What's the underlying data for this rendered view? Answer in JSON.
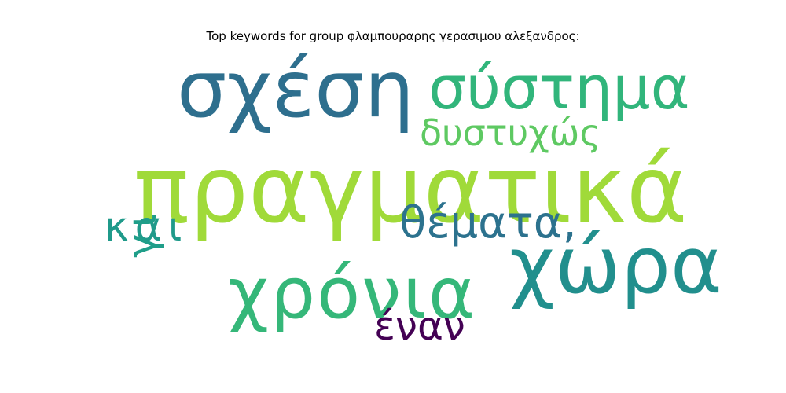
{
  "chart_data": {
    "type": "wordcloud",
    "title": "Top keywords for group φλαμπουραρης γερασιμου αλεξανδρος:",
    "words": [
      {
        "text": "πραγματικά",
        "color": "#a0da39"
      },
      {
        "text": "σχέση",
        "color": "#2e6f8e"
      },
      {
        "text": "χώρα",
        "color": "#218f8d"
      },
      {
        "text": "χρόνια",
        "color": "#35b779"
      },
      {
        "text": "σύστημα",
        "color": "#31b57b"
      },
      {
        "text": "θέματα,",
        "color": "#2c728e"
      },
      {
        "text": "δυστυχώς",
        "color": "#5ec962"
      },
      {
        "text": "και",
        "color": "#1f9a8a"
      },
      {
        "text": "έναν",
        "color": "#440154"
      },
      {
        "text": "γι",
        "color": "#1f9e89"
      }
    ]
  }
}
